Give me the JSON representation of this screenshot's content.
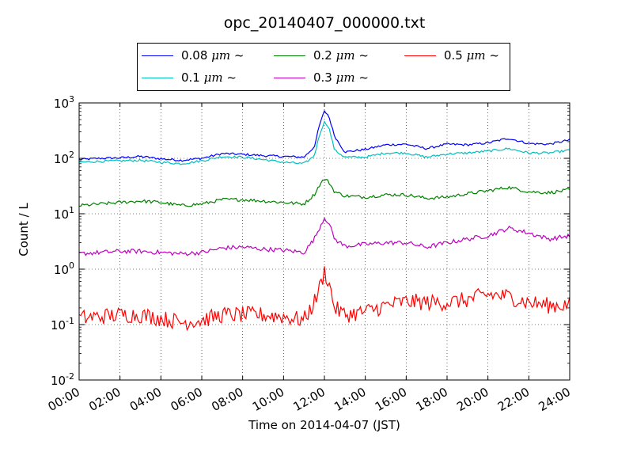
{
  "chart_data": {
    "type": "line",
    "title": "opc_20140407_000000.txt",
    "xlabel": "Time on 2014-04-07 (JST)",
    "ylabel": "Count / L",
    "xlim": [
      0,
      24
    ],
    "ylim": [
      0.01,
      1000
    ],
    "yscale": "log",
    "grid": true,
    "legend_position": "top",
    "x_ticks": [
      "00:00",
      "02:00",
      "04:00",
      "06:00",
      "08:00",
      "10:00",
      "12:00",
      "14:00",
      "16:00",
      "18:00",
      "20:00",
      "22:00",
      "24:00"
    ],
    "y_ticks": [
      {
        "base": "10",
        "exp": "-2"
      },
      {
        "base": "10",
        "exp": "-1"
      },
      {
        "base": "10",
        "exp": "0"
      },
      {
        "base": "10",
        "exp": "1"
      },
      {
        "base": "10",
        "exp": "2"
      },
      {
        "base": "10",
        "exp": "3"
      }
    ],
    "x_hours": [
      0,
      1,
      2,
      3,
      4,
      5,
      6,
      7,
      8,
      9,
      10,
      11,
      11.5,
      11.8,
      12,
      12.2,
      12.5,
      13,
      14,
      15,
      16,
      17,
      18,
      19,
      20,
      21,
      22,
      23,
      24
    ],
    "series": [
      {
        "name": "0.08 μm ~",
        "color": "#0000ff",
        "noise": 0.02,
        "values": [
          95,
          100,
          102,
          108,
          98,
          92,
          100,
          122,
          118,
          112,
          108,
          105,
          160,
          450,
          700,
          600,
          250,
          130,
          145,
          175,
          180,
          150,
          180,
          175,
          190,
          230,
          185,
          180,
          215
        ]
      },
      {
        "name": "0.1 μm ~",
        "color": "#00bfbf",
        "noise": 0.02,
        "values": [
          85,
          88,
          90,
          92,
          85,
          80,
          90,
          108,
          105,
          95,
          85,
          80,
          110,
          300,
          450,
          380,
          140,
          105,
          105,
          125,
          125,
          105,
          120,
          125,
          135,
          150,
          125,
          125,
          140
        ]
      },
      {
        "name": "0.2 μm ~",
        "color": "#008000",
        "noise": 0.03,
        "values": [
          14,
          15,
          16,
          17,
          16,
          14,
          15,
          18,
          18,
          17,
          16,
          15,
          22,
          35,
          42,
          38,
          25,
          21,
          20,
          22,
          22,
          19,
          20,
          23,
          26,
          30,
          25,
          24,
          27
        ]
      },
      {
        "name": "0.3 μm ~",
        "color": "#bf00bf",
        "noise": 0.04,
        "values": [
          1.9,
          2.0,
          2.1,
          2.1,
          2.0,
          1.9,
          2.0,
          2.4,
          2.5,
          2.3,
          2.2,
          2.0,
          3.5,
          6.0,
          8.5,
          7.0,
          3.5,
          2.6,
          2.8,
          3.0,
          3.0,
          2.5,
          3.0,
          3.5,
          4.0,
          5.5,
          4.5,
          3.5,
          4.0
        ]
      },
      {
        "name": "0.5 μm ~",
        "color": "#ff0000",
        "noise": 0.15,
        "values": [
          0.13,
          0.14,
          0.15,
          0.15,
          0.13,
          0.11,
          0.12,
          0.15,
          0.15,
          0.15,
          0.14,
          0.12,
          0.25,
          0.5,
          0.9,
          0.6,
          0.2,
          0.15,
          0.17,
          0.22,
          0.26,
          0.25,
          0.25,
          0.28,
          0.35,
          0.32,
          0.25,
          0.22,
          0.23
        ]
      }
    ]
  },
  "legend": {
    "items": [
      {
        "value": "0.08",
        "unit": "μm ~"
      },
      {
        "value": "0.2",
        "unit": "μm ~"
      },
      {
        "value": "0.5",
        "unit": "μm ~"
      },
      {
        "value": "0.1",
        "unit": "μm ~"
      },
      {
        "value": "0.3",
        "unit": "μm ~"
      }
    ]
  }
}
